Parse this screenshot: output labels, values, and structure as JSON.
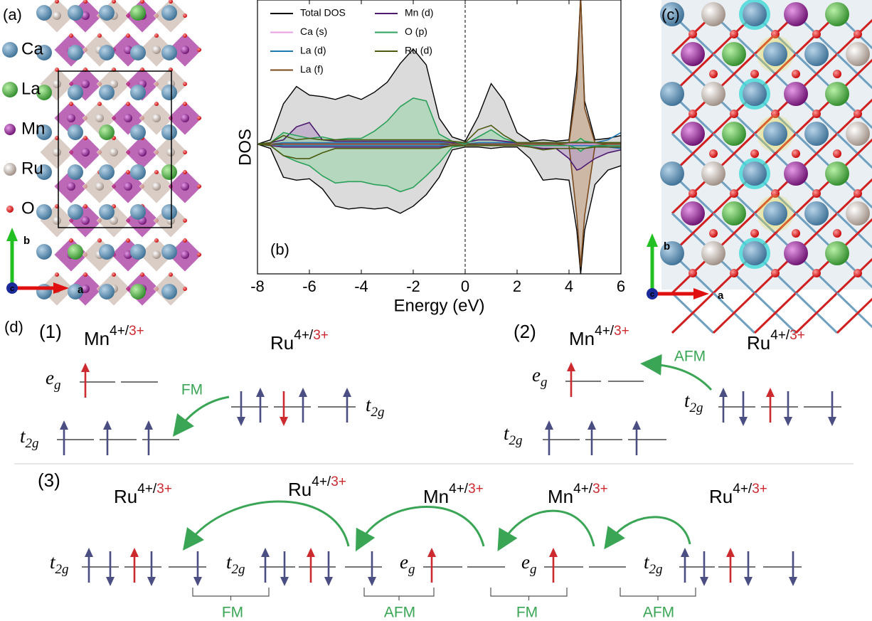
{
  "panel_a": {
    "label": "(a)",
    "legend": [
      "Ca",
      "La",
      "Mn",
      "Ru",
      "O"
    ],
    "axes": [
      "b",
      "a",
      "c"
    ]
  },
  "panel_c": {
    "label": "(c)",
    "axes": [
      "b",
      "a",
      "c"
    ]
  },
  "chart_data": {
    "type": "area",
    "label": "(b)",
    "xlabel": "Energy (eV)",
    "ylabel": "DOS",
    "xlim": [
      -8,
      6
    ],
    "xticks": [
      -8,
      -6,
      -4,
      -2,
      0,
      2,
      4,
      6
    ],
    "ylim": [
      -9,
      10
    ],
    "x": [
      -8,
      -7.5,
      -7,
      -6.5,
      -6,
      -5.5,
      -5,
      -4.5,
      -4,
      -3.5,
      -3,
      -2.5,
      -2,
      -1.5,
      -1,
      -0.5,
      0,
      0.5,
      1,
      1.5,
      2,
      2.5,
      3,
      3.5,
      4,
      4.3,
      4.45,
      4.6,
      5,
      5.5,
      6
    ],
    "series": [
      {
        "name": "Total DOS",
        "color": "#000000",
        "fill": "#c8c8c8",
        "up": [
          0,
          0.3,
          2.8,
          4.0,
          3.4,
          3.3,
          3.1,
          3.4,
          3.1,
          3.6,
          4.3,
          5.6,
          6.6,
          5.5,
          1.8,
          0.5,
          0.2,
          1.9,
          4.2,
          3.0,
          0.8,
          0.2,
          0.3,
          0.2,
          0.3,
          5,
          10.3,
          3,
          0.3,
          0.4,
          0.6
        ],
        "down": [
          0,
          -0.3,
          -2.3,
          -2.5,
          -2.4,
          -3.1,
          -4.3,
          -4.5,
          -4.4,
          -4.5,
          -4.4,
          -4.8,
          -4.3,
          -3.5,
          -2.3,
          -0.4,
          -0.2,
          -0.2,
          -0.3,
          -0.2,
          -0.2,
          -1.0,
          -2.5,
          -2.4,
          -2.5,
          -6,
          -9,
          -6,
          -2.8,
          -1.8,
          -1.5
        ]
      },
      {
        "name": "Ca (s)",
        "color": "#e8a0e0",
        "up": [
          0,
          0,
          0.05,
          0.05,
          0.05,
          0.05,
          0.05,
          0.05,
          0.05,
          0.05,
          0.05,
          0.05,
          0.05,
          0.05,
          0.05,
          0,
          0,
          0,
          0.05,
          0.05,
          0.05,
          0.05,
          0.05,
          0.05,
          0.05,
          0.05,
          0.05,
          0.05,
          0.05,
          0.05,
          0.05
        ],
        "down": [
          0,
          0,
          -0.05,
          -0.05,
          -0.05,
          -0.05,
          -0.05,
          -0.05,
          -0.05,
          -0.05,
          -0.05,
          -0.05,
          -0.05,
          -0.05,
          -0.05,
          0,
          0,
          0,
          -0.05,
          -0.05,
          -0.05,
          -0.05,
          -0.05,
          -0.05,
          -0.05,
          -0.05,
          -0.05,
          -0.05,
          -0.05,
          -0.05,
          -0.05
        ]
      },
      {
        "name": "La (d)",
        "color": "#1f77b4",
        "up": [
          0,
          0,
          0.1,
          0.1,
          0.1,
          0.1,
          0.1,
          0.1,
          0.1,
          0.1,
          0.1,
          0.1,
          0.1,
          0.1,
          0.1,
          0,
          0,
          0.1,
          0.1,
          0.1,
          0.1,
          0.1,
          0.1,
          0.1,
          0.1,
          0.1,
          0.1,
          0.1,
          0.1,
          0.3,
          0.8
        ],
        "down": [
          0,
          0,
          -0.1,
          -0.1,
          -0.1,
          -0.1,
          -0.1,
          -0.1,
          -0.1,
          -0.1,
          -0.1,
          -0.1,
          -0.1,
          -0.1,
          -0.1,
          0,
          0,
          -0.1,
          -0.1,
          -0.1,
          -0.1,
          -0.1,
          -0.1,
          -0.1,
          -0.1,
          -0.1,
          -0.1,
          -0.1,
          -0.1,
          -0.2,
          -0.3
        ]
      },
      {
        "name": "La (f)",
        "color": "#7a4a1e",
        "fill": "#c6a489",
        "up": [
          0,
          0,
          0,
          0,
          0,
          0,
          0,
          0,
          0,
          0,
          0,
          0,
          0,
          0,
          0,
          0,
          0,
          0,
          0,
          0,
          0,
          0,
          0,
          0,
          0.1,
          4,
          10.3,
          2.5,
          0.1,
          0,
          0
        ],
        "down": [
          0,
          0,
          0,
          0,
          0,
          0,
          0,
          0,
          0,
          0,
          0,
          0,
          0,
          0,
          0,
          0,
          0,
          0,
          0,
          0,
          0,
          0,
          0,
          0,
          -0.1,
          -5,
          -8.5,
          -5,
          -0.1,
          0,
          0
        ]
      },
      {
        "name": "Mn (d)",
        "color": "#4b1a6e",
        "fill": "#b9a0c8",
        "up": [
          0,
          0.1,
          0.3,
          1.2,
          1.5,
          0.3,
          0.2,
          0.2,
          0.2,
          0.2,
          0.2,
          0.2,
          0.2,
          0.2,
          0.2,
          0.1,
          0.1,
          0.3,
          0.3,
          0.2,
          0.1,
          0.1,
          0.1,
          0.1,
          0.1,
          0.1,
          0.1,
          0.1,
          0.1,
          0.1,
          0.1
        ],
        "down": [
          0,
          -0.1,
          -0.2,
          -0.2,
          -0.2,
          -0.2,
          -0.2,
          -0.2,
          -0.2,
          -0.2,
          -0.2,
          -0.2,
          -0.2,
          -0.2,
          -0.2,
          -0.1,
          -0.1,
          -0.1,
          -0.1,
          -0.1,
          -0.1,
          -0.2,
          -0.3,
          -0.3,
          -1.0,
          -1.8,
          -1.7,
          -1.5,
          -1.0,
          -0.6,
          -0.4
        ]
      },
      {
        "name": "O (p)",
        "color": "#2ca05a",
        "fill": "#9fd6ad",
        "up": [
          0,
          0.1,
          0.8,
          0.6,
          0.4,
          0.5,
          0.3,
          0.4,
          0.4,
          0.9,
          1.6,
          2.6,
          3.2,
          3.0,
          0.7,
          0.2,
          0,
          0.5,
          1.0,
          0.4,
          0.1,
          0.1,
          0.1,
          0.1,
          0.1,
          0.2,
          0.4,
          0.2,
          0.1,
          0.1,
          0.1
        ],
        "down": [
          0,
          -0.1,
          -0.8,
          -1.2,
          -1.5,
          -2.2,
          -2.7,
          -2.6,
          -2.6,
          -2.8,
          -2.9,
          -3.3,
          -3.0,
          -2.2,
          -1.3,
          -0.2,
          -0.1,
          -0.1,
          -0.1,
          -0.1,
          -0.1,
          -0.1,
          -0.1,
          -0.1,
          -0.1,
          -0.3,
          -0.5,
          -0.3,
          -0.1,
          -0.1,
          -0.1
        ]
      },
      {
        "name": "Ru (d)",
        "color": "#4b5a10",
        "up": [
          0,
          0.1,
          0.6,
          0.3,
          0.4,
          0.3,
          0.3,
          0.3,
          0.3,
          0.3,
          0.3,
          0.3,
          0.3,
          0.3,
          0.3,
          0.2,
          0.1,
          1.0,
          1.3,
          0.6,
          0.1,
          0.1,
          0.1,
          0.1,
          0.1,
          0.1,
          0.1,
          0.1,
          0.1,
          0.1,
          0.1
        ],
        "down": [
          0,
          -0.1,
          -0.8,
          -1.0,
          -1.0,
          -0.6,
          -0.3,
          -0.3,
          -0.3,
          -0.3,
          -0.3,
          -0.3,
          -0.3,
          -0.3,
          -0.3,
          -0.1,
          -0.1,
          -0.1,
          -0.1,
          -0.1,
          -0.1,
          -0.2,
          -0.4,
          -0.3,
          -0.3,
          -0.3,
          -0.3,
          -0.3,
          -0.2,
          -0.2,
          -0.2
        ]
      }
    ]
  },
  "panel_d": {
    "label": "(d)",
    "parts": [
      "(1)",
      "(2)",
      "(3)"
    ],
    "ions": [
      {
        "element": "Mn",
        "ox": "4+/",
        "ox2": "3+"
      },
      {
        "element": "Ru",
        "ox": "4+/",
        "ox2": "3+"
      },
      {
        "element": "Mn",
        "ox": "4+/",
        "ox2": "3+"
      },
      {
        "element": "Ru",
        "ox": "4+/",
        "ox2": "3+"
      },
      {
        "element": "Ru",
        "ox": "4+/",
        "ox2": "3+"
      },
      {
        "element": "Ru",
        "ox": "4+/",
        "ox2": "3+"
      },
      {
        "element": "Mn",
        "ox": "4+/",
        "ox2": "3+"
      },
      {
        "element": "Mn",
        "ox": "4+/",
        "ox2": "3+"
      },
      {
        "element": "Ru",
        "ox": "4+/",
        "ox2": "3+"
      }
    ],
    "orbitals": [
      {
        "letter": "e",
        "sub": "g"
      },
      {
        "letter": "t",
        "sub": "2g"
      },
      {
        "letter": "t",
        "sub": "2g"
      },
      {
        "letter": "e",
        "sub": "g"
      },
      {
        "letter": "t",
        "sub": "2g"
      },
      {
        "letter": "t",
        "sub": "2g"
      },
      {
        "letter": "t",
        "sub": "2g"
      },
      {
        "letter": "t",
        "sub": "2g"
      },
      {
        "letter": "e",
        "sub": "g"
      },
      {
        "letter": "e",
        "sub": "g"
      },
      {
        "letter": "t",
        "sub": "2g"
      }
    ],
    "couplings": [
      "FM",
      "AFM",
      "FM",
      "AFM",
      "FM",
      "AFM"
    ]
  }
}
